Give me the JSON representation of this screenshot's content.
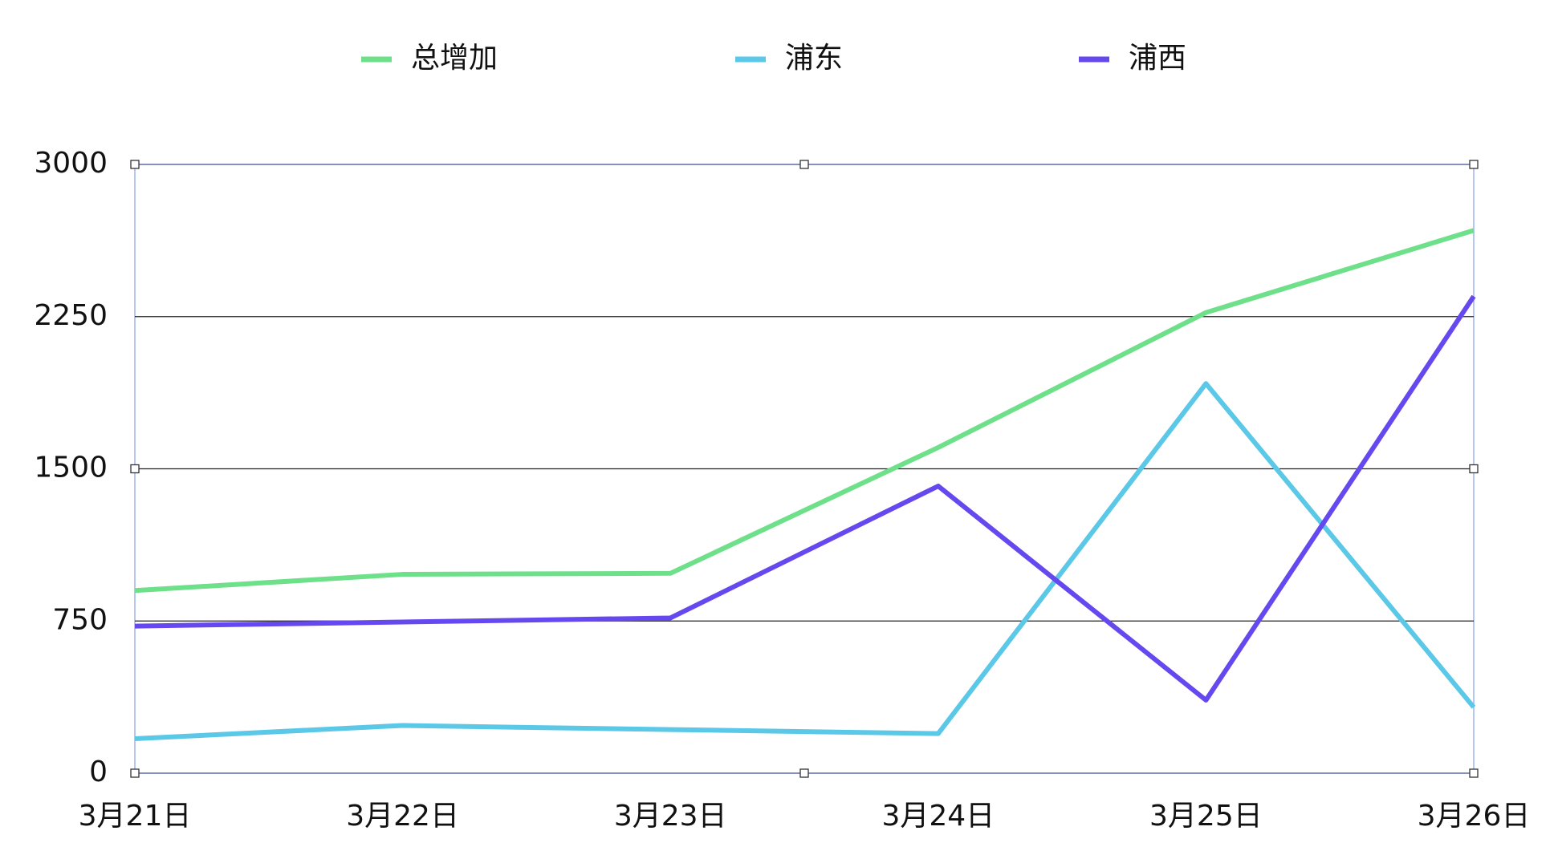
{
  "chart_data": {
    "type": "line",
    "categories": [
      "3月21日",
      "3月22日",
      "3月23日",
      "3月24日",
      "3月25日",
      "3月26日"
    ],
    "series": [
      {
        "name": "总增加",
        "color": "#6ee08a",
        "values": [
          900,
          980,
          985,
          1605,
          2270,
          2675
        ]
      },
      {
        "name": "浦东",
        "color": "#5bc8e8",
        "values": [
          170,
          235,
          215,
          195,
          1920,
          325
        ]
      },
      {
        "name": "浦西",
        "color": "#6649ee",
        "values": [
          725,
          745,
          765,
          1415,
          360,
          2350
        ]
      }
    ],
    "ylim": [
      0,
      3000
    ],
    "yticks": [
      0,
      750,
      1500,
      2250,
      3000
    ],
    "grid": true
  }
}
